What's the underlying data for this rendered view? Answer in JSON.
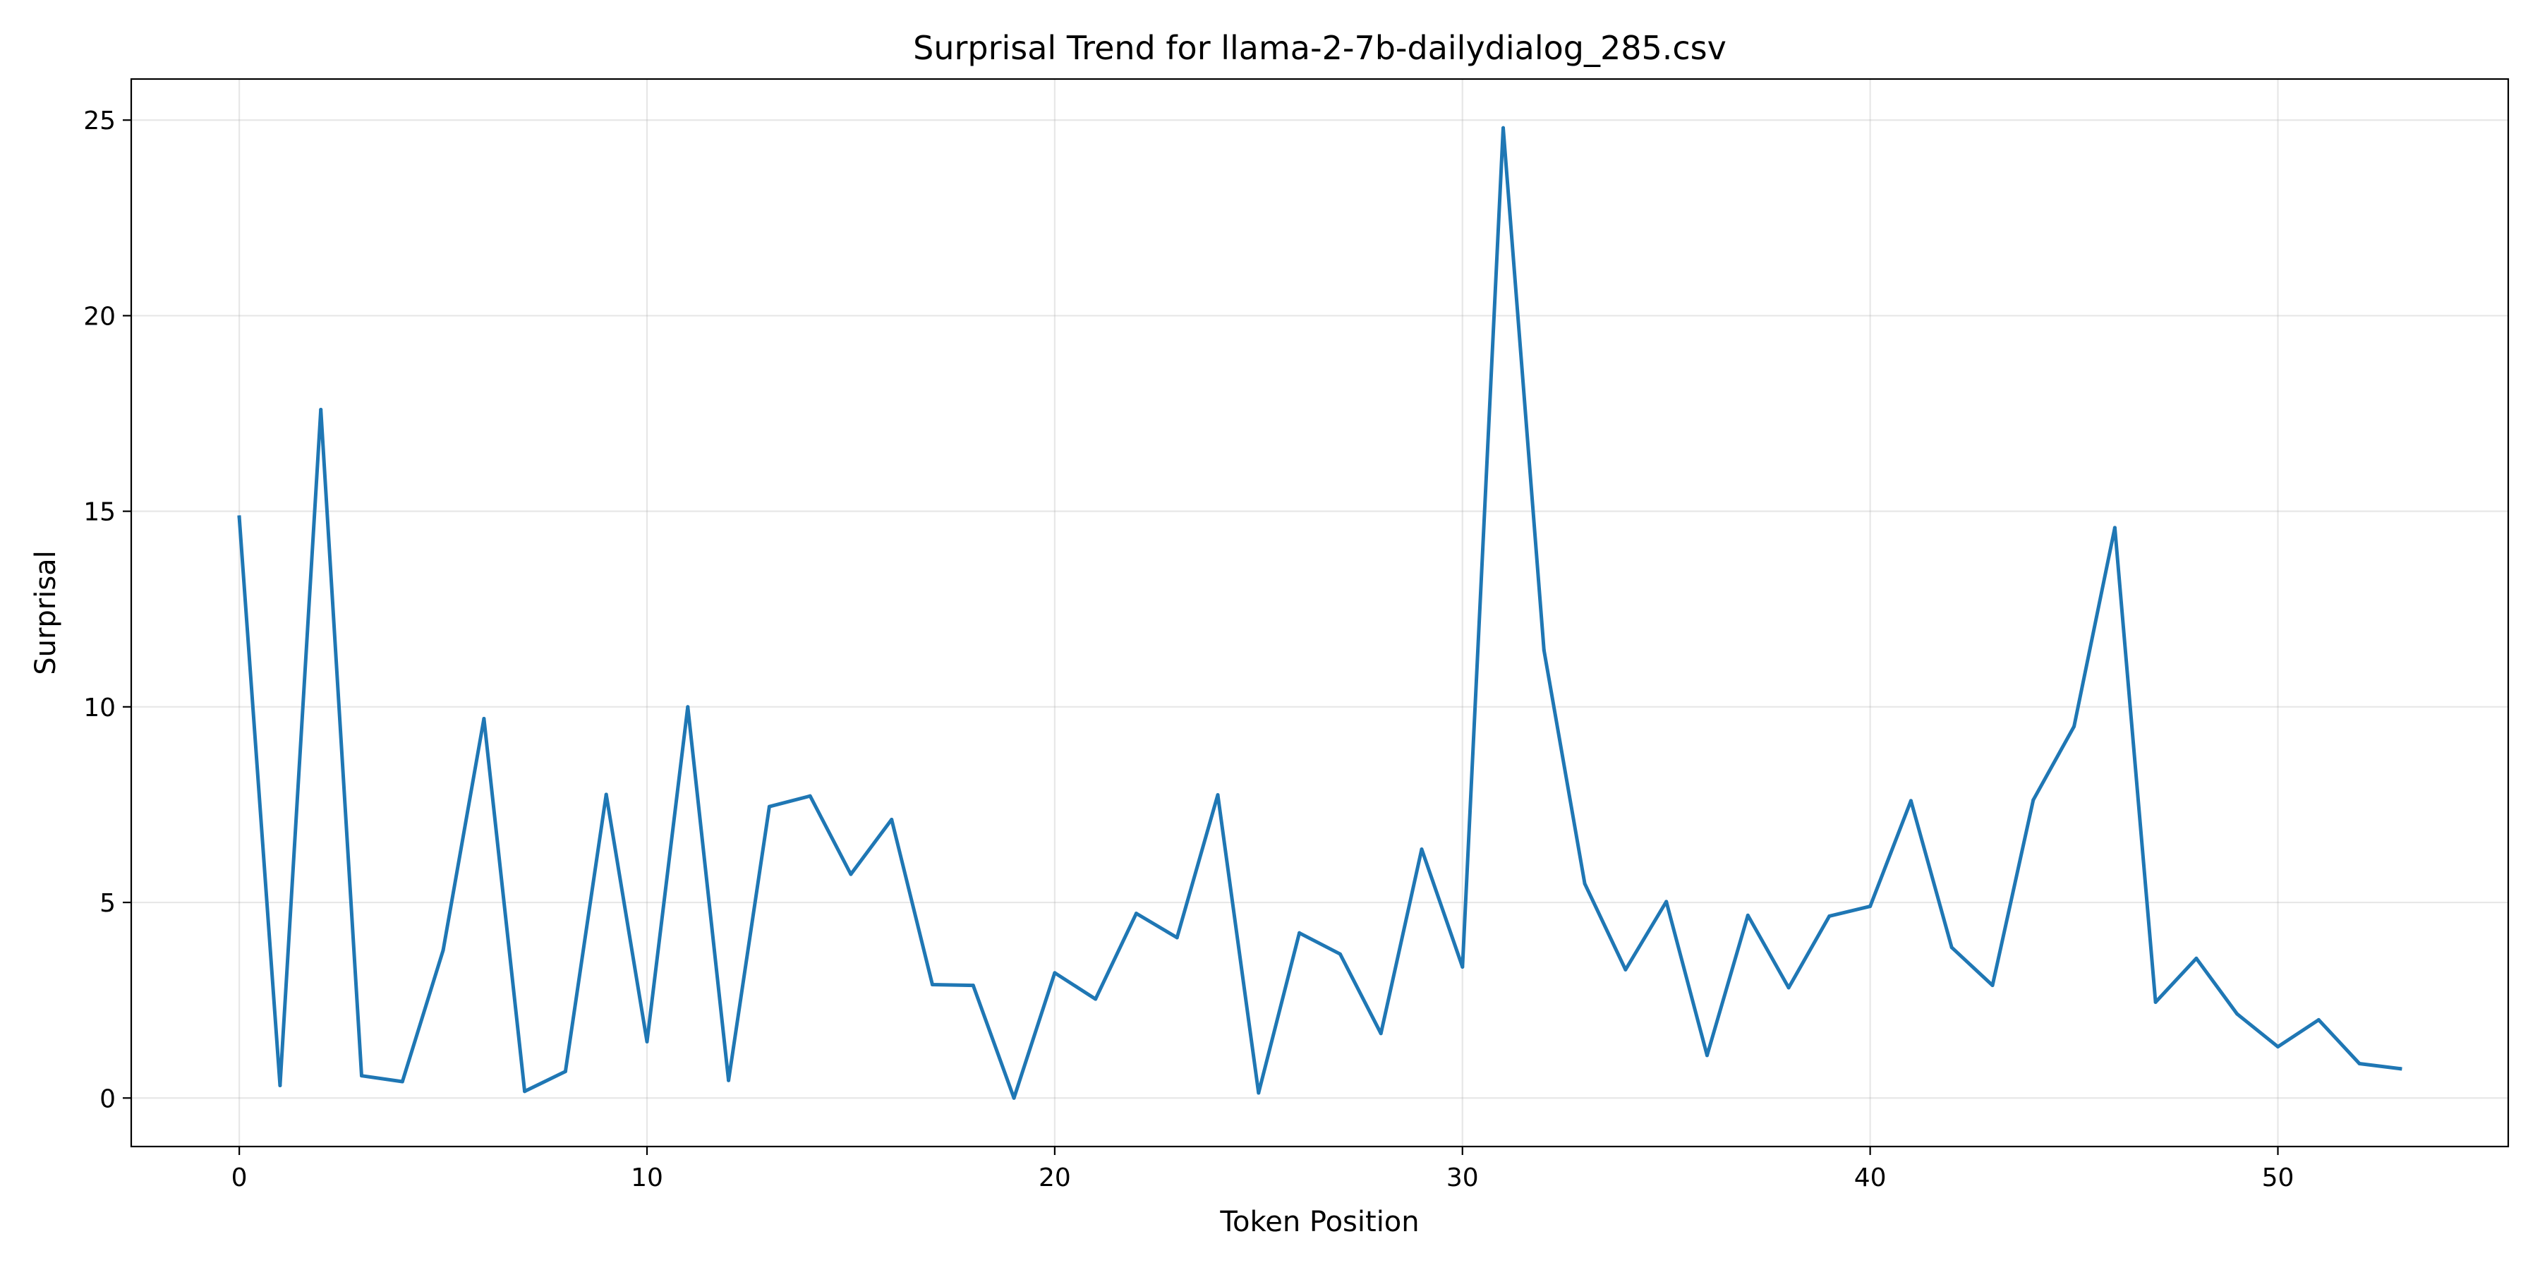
{
  "chart_data": {
    "type": "line",
    "title": "Surprisal Trend for llama-2-7b-dailydialog_285.csv",
    "xlabel": "Token Position",
    "ylabel": "Surprisal",
    "xlim": [
      -2.65,
      55.65
    ],
    "ylim": [
      -1.24,
      26.05
    ],
    "xticks": [
      0,
      10,
      20,
      30,
      40,
      50
    ],
    "yticks": [
      0,
      5,
      10,
      15,
      20,
      25
    ],
    "grid": true,
    "legend": "none",
    "colors": {
      "line": "#1f77b4",
      "grid": "#b0b0b0",
      "axes": "#000000",
      "background": "#ffffff"
    },
    "series": [
      {
        "x": [
          0,
          1,
          2,
          3,
          4,
          5,
          6,
          7,
          8,
          9,
          10,
          11,
          12,
          13,
          14,
          15,
          16,
          17,
          18,
          19,
          20,
          21,
          22,
          23,
          24,
          25,
          26,
          27,
          28,
          29,
          30,
          31,
          32,
          33,
          34,
          35,
          36,
          37,
          38,
          39,
          40,
          41,
          42,
          43,
          44,
          45,
          46,
          47,
          48,
          49,
          50,
          51,
          52,
          53
        ],
        "values": [
          14.85,
          0.32,
          17.6,
          0.57,
          0.42,
          3.78,
          9.7,
          0.17,
          0.68,
          7.76,
          1.44,
          10.0,
          0.45,
          7.45,
          7.72,
          5.72,
          7.12,
          2.9,
          2.88,
          0.0,
          3.2,
          2.53,
          4.72,
          4.1,
          7.75,
          0.13,
          4.22,
          3.68,
          1.65,
          6.36,
          3.35,
          24.8,
          11.45,
          5.48,
          3.28,
          5.02,
          1.09,
          4.67,
          2.82,
          4.65,
          4.9,
          7.6,
          3.85,
          2.88,
          7.62,
          9.5,
          14.58,
          2.45,
          3.57,
          2.15,
          1.31,
          2.0,
          0.88,
          0.75
        ]
      }
    ]
  }
}
